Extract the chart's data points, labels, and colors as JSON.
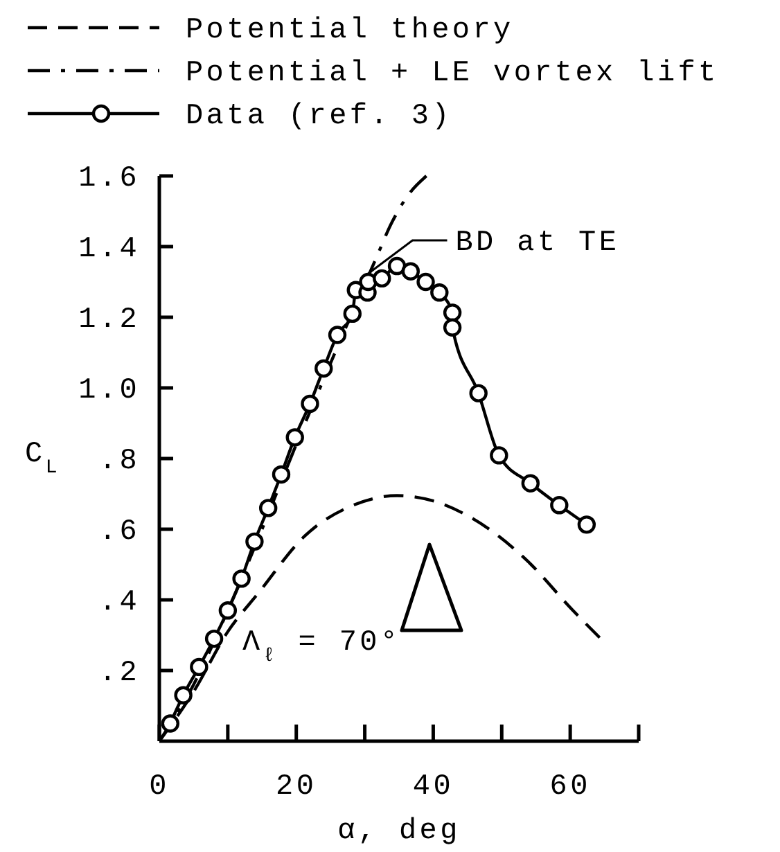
{
  "chart_data": {
    "type": "line",
    "xlabel": "α, deg",
    "ylabel": "C$_{L}$",
    "xlim": [
      0,
      70
    ],
    "ylim": [
      0,
      1.6
    ],
    "xticks": [
      0,
      {
        "value": 10,
        "label": null
      },
      20,
      {
        "value": 30,
        "label": null
      },
      40,
      {
        "value": 50,
        "label": null
      },
      60,
      {
        "value": 70,
        "label": null
      }
    ],
    "yticks": [
      {
        "value": 0.2,
        "label": ".2"
      },
      {
        "value": 0.4,
        "label": ".4"
      },
      {
        "value": 0.6,
        "label": ".6"
      },
      {
        "value": 0.8,
        "label": ".8"
      },
      {
        "value": 1.0,
        "label": "1.0"
      },
      {
        "value": 1.2,
        "label": "1.2"
      },
      {
        "value": 1.4,
        "label": "1.4"
      },
      {
        "value": 1.6,
        "label": "1.6"
      }
    ],
    "grid": false,
    "legend": "top left",
    "series": [
      {
        "name": "Potential theory",
        "color": "#000000",
        "line_style": "dashed",
        "marker": "none",
        "x": [
          0,
          5,
          10,
          14.5,
          21.2,
          28.6,
          34.7,
          40,
          45.5,
          53.5,
          60.3,
          64.3
        ],
        "values": [
          0,
          0.14,
          0.31,
          0.42,
          0.58,
          0.67,
          0.695,
          0.68,
          0.633,
          0.515,
          0.372,
          0.293
        ]
      },
      {
        "name": "Potential + LE vortex lift",
        "color": "#000000",
        "line_style": "dashdot",
        "marker": "none",
        "x": [
          0,
          5,
          10,
          15,
          20,
          25,
          29,
          31.5,
          34,
          36.5,
          39
        ],
        "values": [
          0,
          0.16,
          0.37,
          0.6,
          0.84,
          1.07,
          1.25,
          1.36,
          1.47,
          1.55,
          1.6
        ]
      },
      {
        "name": "Data (ref. 3)",
        "color": "#000000",
        "line_style": "solid",
        "marker": "circle",
        "x": [
          1.6,
          3.5,
          5.8,
          8.0,
          10.0,
          12.0,
          13.9,
          15.9,
          17.8,
          19.8,
          22.0,
          24.0,
          26.0,
          28.2,
          28.7,
          30.4,
          30.5,
          32.5,
          34.7,
          36.7,
          38.9,
          40.9,
          42.8,
          42.8,
          46.6,
          49.6,
          54.2,
          58.4,
          62.4
        ],
        "values": [
          0.05,
          0.13,
          0.21,
          0.29,
          0.37,
          0.46,
          0.565,
          0.66,
          0.755,
          0.86,
          0.955,
          1.055,
          1.15,
          1.21,
          1.277,
          1.27,
          1.3,
          1.31,
          1.345,
          1.33,
          1.3,
          1.27,
          1.213,
          1.171,
          0.985,
          0.809,
          0.73,
          0.668,
          0.613
        ]
      }
    ],
    "annotations": [
      {
        "text": "BD at TE",
        "x": 30.5,
        "y": 1.3
      },
      "Λ$_{ℓ}$ = 70°"
    ]
  }
}
